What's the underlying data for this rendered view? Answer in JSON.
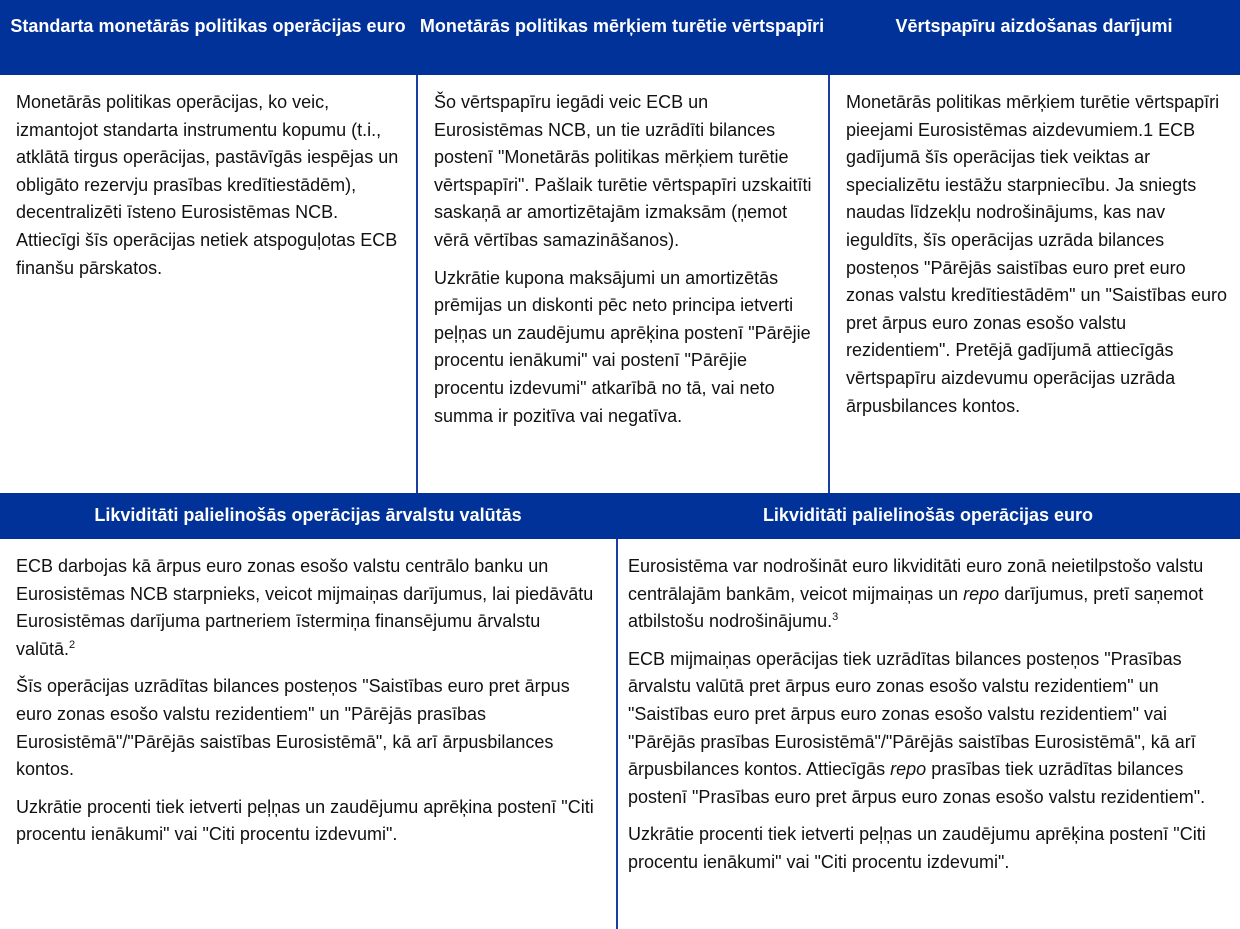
{
  "top": {
    "headers": [
      "Standarta monetārās politikas operācijas euro",
      "Monetārās politikas mērķiem turētie vērtspapīri",
      "Vērtspapīru aizdošanas darījumi"
    ],
    "col1": [
      "Monetārās politikas operācijas, ko veic, izmantojot standarta instrumentu kopumu (t.i., atklātā tirgus operācijas, pastāvīgās iespējas un obligāto rezervju prasības kredītiestādēm), decentralizēti īsteno Eurosistēmas NCB. Attiecīgi šīs operācijas netiek atspoguļotas ECB finanšu pārskatos."
    ],
    "col2": [
      "Šo vērtspapīru iegādi veic ECB un Eurosistēmas NCB, un tie uzrādīti bilances postenī \"Monetārās politikas mērķiem turētie vērtspapīri\". Pašlaik turētie vērtspapīri uzskaitīti saskaņā ar amortizētajām izmaksām (ņemot vērā vērtības samazināšanos).",
      "Uzkrātie kupona maksājumi un amortizētās prēmijas un diskonti pēc neto principa ietverti peļņas un zaudējumu aprēķina postenī \"Pārējie procentu ienākumi\" vai postenī \"Pārējie procentu izdevumi\" atkarībā no tā, vai neto summa ir pozitīva vai negatīva."
    ],
    "col3": [
      "Monetārās politikas mērķiem turētie vērtspapīri pieejami Eurosistēmas aizdevumiem.1 ECB gadījumā šīs operācijas tiek veiktas ar specializētu iestāžu starpniecību. Ja sniegts naudas līdzekļu nodrošinājums, kas nav ieguldīts, šīs operācijas uzrāda bilances posteņos \"Pārējās saistības euro pret euro zonas valstu kredītiestādēm\" un \"Saistības euro pret ārpus euro zonas esošo valstu rezidentiem\". Pretējā gadījumā attiecīgās vērtspapīru aizdevumu operācijas uzrāda ārpusbilances kontos."
    ]
  },
  "bottom": {
    "headers": [
      "Likviditāti palielinošās operācijas ārvalstu valūtās",
      "Likviditāti palielinošās operācijas euro"
    ],
    "left": {
      "p1": "ECB darbojas kā ārpus euro zonas esošo valstu centrālo banku un Eurosistēmas NCB starpnieks, veicot mijmaiņas darījumus, lai piedāvātu Eurosistēmas darījuma partneriem īstermiņa finansējumu ārvalstu valūtā.",
      "p1_sup": "2",
      "p2": "Šīs operācijas uzrādītas bilances posteņos \"Saistības euro pret ārpus euro zonas esošo valstu rezidentiem\" un \"Pārējās prasības Eurosistēmā\"/\"Pārējās saistības Eurosistēmā\", kā arī ārpusbilances kontos.",
      "p3": "Uzkrātie procenti tiek ietverti peļņas un zaudējumu aprēķina postenī \"Citi procentu ienākumi\" vai \"Citi procentu izdevumi\"."
    },
    "right": {
      "p1a": "Eurosistēma var nodrošināt euro likviditāti euro zonā neietilpstošo valstu centrālajām bankām, veicot mijmaiņas un ",
      "p1_italic": "repo",
      "p1b": " darījumus, pretī saņemot atbilstošu nodrošinājumu.",
      "p1_sup": "3",
      "p2a": "ECB mijmaiņas operācijas tiek uzrādītas bilances posteņos \"Prasības ārvalstu valūtā pret ārpus euro zonas esošo valstu rezidentiem\" un \"Saistības euro pret ārpus euro zonas esošo valstu rezidentiem\" vai \"Pārējās prasības Eurosistēmā\"/\"Pārējās saistības Eurosistēmā\", kā arī ārpusbilances kontos. Attiecīgās ",
      "p2_italic": "repo",
      "p2b": " prasības tiek uzrādītas bilances postenī \"Prasības euro pret ārpus euro zonas esošo valstu rezidentiem\".",
      "p3": "Uzkrātie procenti tiek ietverti peļņas un zaudējumu aprēķina postenī \"Citi procentu ienākumi\" vai \"Citi procentu izdevumi\"."
    }
  },
  "colors": {
    "header_bg": "#003299",
    "border": "#1a3fa0"
  }
}
